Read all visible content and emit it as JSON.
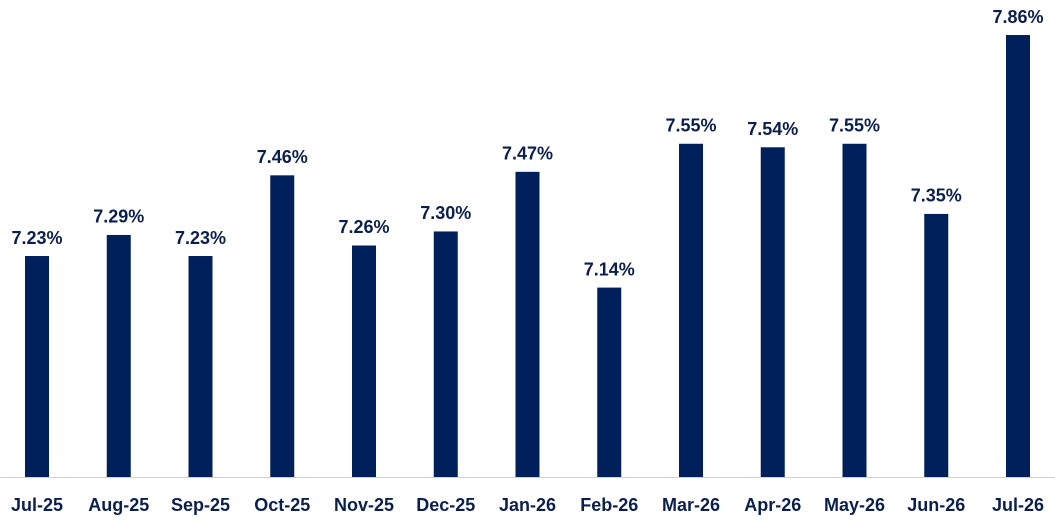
{
  "chart_data": {
    "type": "bar",
    "categories": [
      "Jul-25",
      "Aug-25",
      "Sep-25",
      "Oct-25",
      "Nov-25",
      "Dec-25",
      "Jan-26",
      "Feb-26",
      "Mar-26",
      "Apr-26",
      "May-26",
      "Jun-26",
      "Jul-26"
    ],
    "values": [
      7.23,
      7.29,
      7.23,
      7.46,
      7.26,
      7.3,
      7.47,
      7.14,
      7.55,
      7.54,
      7.55,
      7.35,
      7.86
    ],
    "value_labels": [
      "7.23%",
      "7.29%",
      "7.23%",
      "7.46%",
      "7.26%",
      "7.30%",
      "7.47%",
      "7.14%",
      "7.55%",
      "7.54%",
      "7.55%",
      "7.35%",
      "7.86%"
    ],
    "color": "#00205b",
    "ylim": [
      6.6,
      7.9
    ]
  }
}
